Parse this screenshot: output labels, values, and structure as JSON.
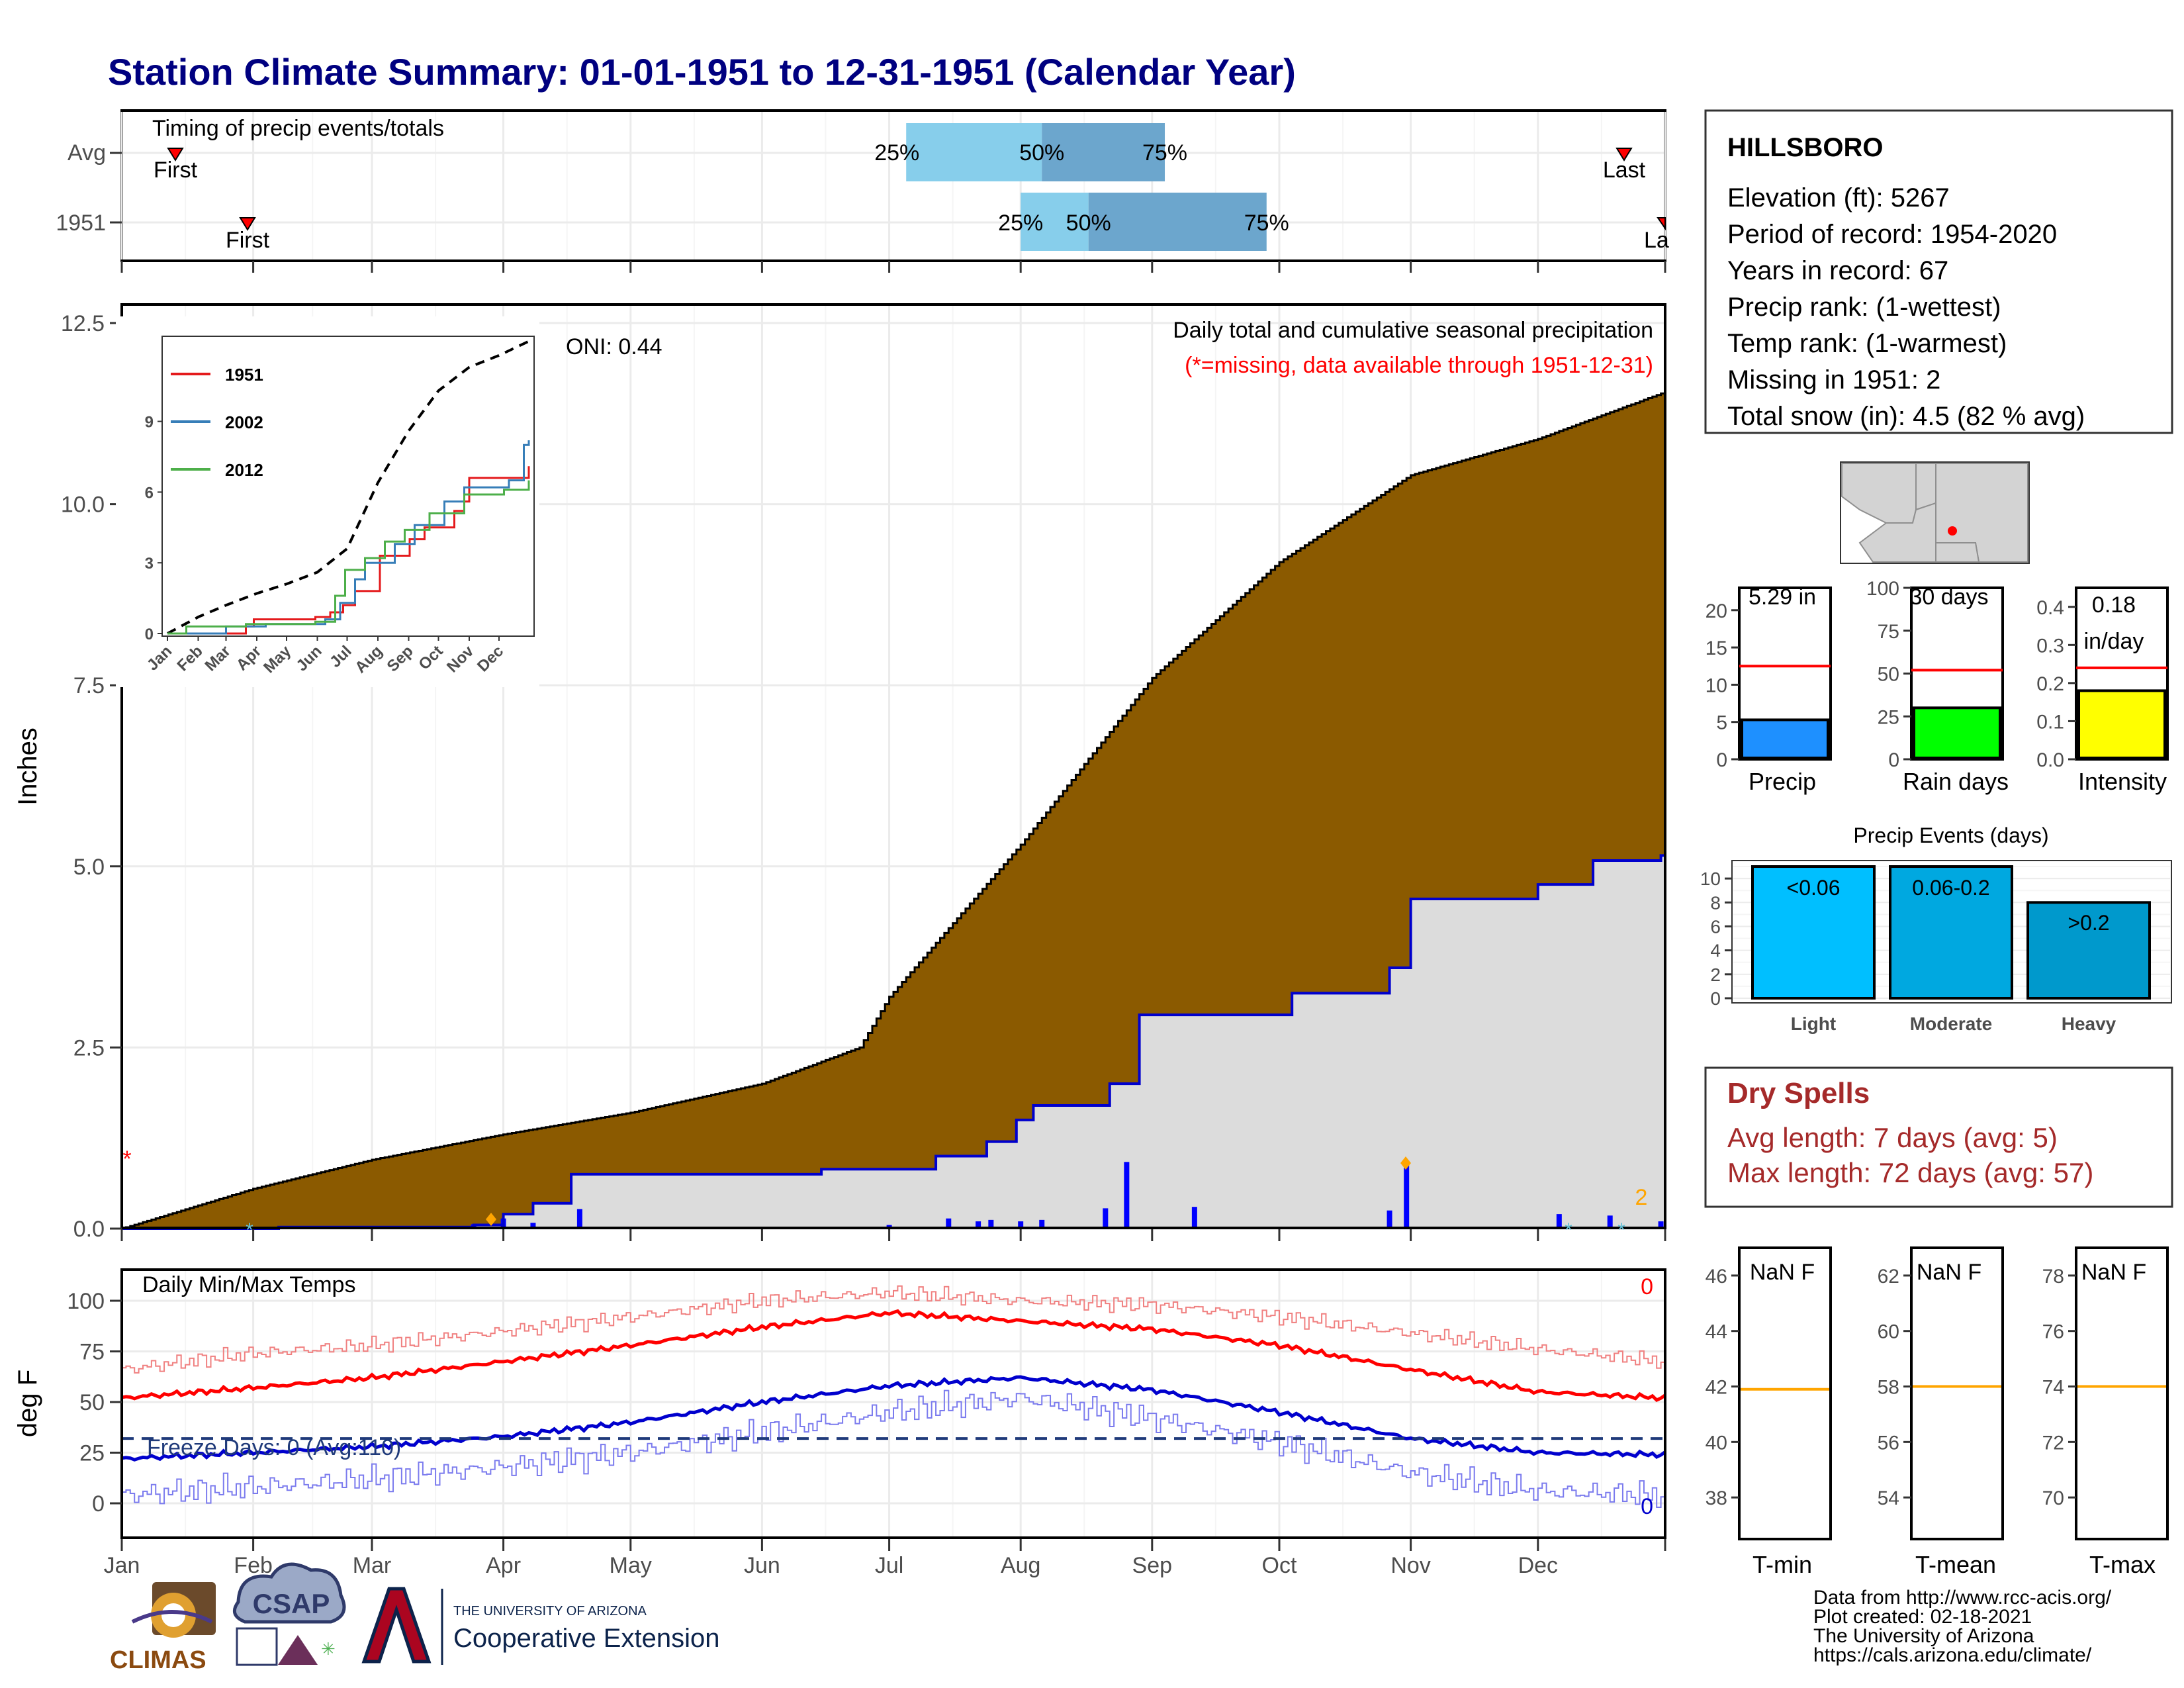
{
  "title": "Station Climate Summary: 01-01-1951 to 12-31-1951 (Calendar Year)",
  "months": [
    "Jan",
    "Feb",
    "Mar",
    "Apr",
    "May",
    "Jun",
    "Jul",
    "Aug",
    "Sep",
    "Oct",
    "Nov",
    "Dec"
  ],
  "timing": {
    "title": "Timing of precip events/totals",
    "rows": [
      "Avg",
      "1951"
    ],
    "first_label": "First",
    "last_label": "Last",
    "last_label_cut": "La",
    "p25": "25%",
    "p50": "50%",
    "p75": "75%"
  },
  "precip_panel": {
    "ylabel": "Inches",
    "oni": "ONI: 0.44",
    "subtitle": "Daily total and cumulative seasonal precipitation",
    "missing_note": "(*=missing, data available through 1951-12-31)",
    "count_label": "2"
  },
  "inset": {
    "legend": [
      "1951",
      "2002",
      "2012"
    ],
    "months": [
      "Jan",
      "Feb",
      "Mar",
      "Apr",
      "May",
      "Jun",
      "Jul",
      "Aug",
      "Sep",
      "Oct",
      "Nov",
      "Dec"
    ]
  },
  "temp_panel": {
    "ylabel": "deg F",
    "title": "Daily Min/Max Temps",
    "freeze": "Freeze Days: 0 (Avg:110)",
    "max_count": "0",
    "min_count": "0"
  },
  "station": {
    "name": "HILLSBORO",
    "lines": [
      "Elevation (ft): 5267",
      "Period of record: 1954-2020",
      "Years in record: 67",
      "Precip rank:  (1-wettest)",
      "Temp rank:  (1-warmest)",
      "Missing in 1951: 2",
      "Total snow (in): 4.5 (82 % avg)"
    ]
  },
  "bars": {
    "precip": {
      "value_label": "5.29 in",
      "label": "Precip"
    },
    "raindays": {
      "value_label": "30 days",
      "label": "Rain days"
    },
    "intensity": {
      "value_label_1": "0.18",
      "value_label_2": "in/day",
      "label": "Intensity"
    }
  },
  "events": {
    "title": "Precip Events (days)",
    "cats": [
      "Light",
      "Moderate",
      "Heavy"
    ],
    "bar_labels": [
      "<0.06",
      "0.06-0.2",
      ">0.2"
    ]
  },
  "dry": {
    "title": "Dry Spells",
    "avg": "Avg length: 7 days (avg: 5)",
    "max": "Max length: 72 days (avg: 57)"
  },
  "temp_boxes": [
    {
      "value_label": "NaN F",
      "label": "T-min"
    },
    {
      "value_label": "NaN F",
      "label": "T-mean"
    },
    {
      "value_label": "NaN F",
      "label": "T-max"
    }
  ],
  "footer": {
    "lines": [
      "Data from http://www.rcc-acis.org/",
      "Plot created: 02-18-2021",
      "The University of Arizona",
      "https://cals.arizona.edu/climate/"
    ],
    "logo_climas": "CLIMAS",
    "logo_csap": "CSAP",
    "logo_ua_small": "THE UNIVERSITY OF ARIZONA",
    "logo_ua_big": "Cooperative Extension"
  },
  "colors": {
    "title": "#000080",
    "cum_avg": "#8B5A00",
    "cum_obs": "#0000CD",
    "obs_fill": "#DCDCDC",
    "p25": "#87CEEB",
    "p50": "#6CA6CD",
    "red": "#FF0000",
    "dry_text": "#A52A2A",
    "precip_bar": "#1E90FF",
    "rain_bar": "#00FF00",
    "int_bar": "#FFFF00",
    "ev_light": "#00BFFF",
    "ev_mod": "#00A8E0",
    "ev_heavy": "#0099CC",
    "freeze_line": "#1F3A7A",
    "orange": "#FFA500"
  },
  "chart_data": [
    {
      "type": "area",
      "title": "Daily total and cumulative seasonal precipitation",
      "ylabel": "Inches",
      "ylim": [
        0,
        12.5
      ],
      "yticks": [
        0.0,
        2.5,
        5.0,
        7.5,
        10.0,
        12.5
      ],
      "x_unit": "day of year",
      "series": [
        {
          "name": "average cumulative",
          "x": [
            1,
            32,
            60,
            91,
            121,
            152,
            175,
            182,
            213,
            244,
            274,
            305,
            335,
            365
          ],
          "values": [
            0.0,
            0.55,
            0.95,
            1.3,
            1.6,
            2.0,
            2.5,
            3.2,
            5.3,
            7.6,
            9.2,
            10.4,
            10.9,
            11.55
          ]
        },
        {
          "name": "1951 cumulative",
          "x": [
            1,
            38,
            84,
            91,
            98,
            107,
            166,
            193,
            205,
            212,
            216,
            234,
            241,
            277,
            300,
            305,
            335,
            348,
            364,
            365
          ],
          "values": [
            0.0,
            0.02,
            0.05,
            0.2,
            0.35,
            0.75,
            0.82,
            1.0,
            1.2,
            1.5,
            1.7,
            2.0,
            2.95,
            3.25,
            3.6,
            4.55,
            4.75,
            5.08,
            5.15,
            5.29
          ]
        }
      ],
      "daily_precip": {
        "x": [
          84,
          91,
          98,
          109,
          182,
          196,
          203,
          206,
          213,
          218,
          233,
          238,
          254,
          300,
          304,
          340,
          352,
          364
        ],
        "values": [
          0.06,
          0.14,
          0.08,
          0.27,
          0.05,
          0.14,
          0.1,
          0.12,
          0.1,
          0.12,
          0.28,
          0.92,
          0.3,
          0.25,
          0.94,
          0.2,
          0.18,
          0.1
        ]
      }
    },
    {
      "type": "line",
      "title": "",
      "ylim": [
        0,
        12
      ],
      "yticks": [
        0,
        3,
        6,
        9
      ],
      "x_unit": "day of year",
      "series": [
        {
          "name": "average",
          "x": [
            1,
            32,
            60,
            91,
            121,
            152,
            182,
            213,
            244,
            274,
            305,
            335,
            365
          ],
          "values": [
            0.0,
            0.7,
            1.2,
            1.7,
            2.1,
            2.6,
            3.6,
            6.4,
            8.6,
            10.3,
            11.3,
            11.8,
            12.4
          ]
        },
        {
          "name": "1951",
          "x": [
            1,
            80,
            88,
            150,
            165,
            178,
            190,
            215,
            245,
            260,
            290,
            300,
            305,
            365
          ],
          "values": [
            0.0,
            0.3,
            0.6,
            0.7,
            0.9,
            1.2,
            1.8,
            3.3,
            4.0,
            4.5,
            5.2,
            5.6,
            6.6,
            7.1
          ]
        },
        {
          "name": "2002",
          "x": [
            1,
            60,
            100,
            160,
            175,
            190,
            200,
            230,
            250,
            280,
            300,
            345,
            360,
            365
          ],
          "values": [
            0.0,
            0.3,
            0.4,
            0.6,
            1.3,
            2.3,
            3.0,
            3.8,
            4.6,
            5.6,
            6.2,
            6.5,
            8.0,
            8.2
          ]
        },
        {
          "name": "2012",
          "x": [
            1,
            20,
            80,
            150,
            170,
            180,
            200,
            220,
            240,
            265,
            300,
            340,
            365
          ],
          "values": [
            0.0,
            0.3,
            0.4,
            0.5,
            1.6,
            2.7,
            3.2,
            3.9,
            4.4,
            5.1,
            5.9,
            6.1,
            6.5
          ]
        }
      ]
    },
    {
      "type": "line",
      "title": "Daily Min/Max Temps",
      "ylabel": "deg F",
      "ylim": [
        -15,
        110
      ],
      "yticks": [
        0,
        25,
        50,
        75,
        100
      ],
      "x_unit": "day of year",
      "freeze_threshold": 32,
      "series": [
        {
          "name": "avg max",
          "x": [
            1,
            32,
            60,
            91,
            121,
            152,
            182,
            213,
            244,
            274,
            305,
            335,
            365
          ],
          "values": [
            52,
            57,
            62,
            70,
            78,
            87,
            94,
            90,
            86,
            78,
            66,
            55,
            52
          ]
        },
        {
          "name": "avg min",
          "x": [
            1,
            32,
            60,
            91,
            121,
            152,
            182,
            213,
            244,
            274,
            305,
            335,
            365
          ],
          "values": [
            22,
            25,
            28,
            33,
            40,
            50,
            58,
            62,
            56,
            45,
            32,
            25,
            24
          ]
        },
        {
          "name": "record high",
          "x": [
            1,
            32,
            60,
            91,
            121,
            152,
            182,
            213,
            244,
            274,
            305,
            335,
            365
          ],
          "values": [
            66,
            74,
            78,
            85,
            92,
            100,
            104,
            100,
            98,
            92,
            84,
            76,
            70
          ]
        },
        {
          "name": "record low",
          "x": [
            1,
            32,
            60,
            91,
            121,
            152,
            182,
            213,
            244,
            274,
            305,
            335,
            365
          ],
          "values": [
            4,
            8,
            12,
            18,
            25,
            35,
            45,
            52,
            42,
            30,
            15,
            6,
            4
          ]
        }
      ]
    },
    {
      "type": "bar",
      "categories": [
        "Precip",
        "Rain days",
        "Intensity"
      ],
      "values": [
        5.29,
        30,
        0.18
      ],
      "averages": [
        12.5,
        52,
        0.24
      ],
      "ylims": [
        [
          0,
          23
        ],
        [
          0,
          100
        ],
        [
          0,
          0.45
        ]
      ]
    },
    {
      "type": "bar",
      "title": "Precip Events (days)",
      "categories": [
        "Light",
        "Moderate",
        "Heavy"
      ],
      "values": [
        11,
        11,
        8
      ],
      "ylim": [
        0,
        11.5
      ],
      "yticks": [
        0,
        2,
        4,
        6,
        8,
        10
      ]
    },
    {
      "type": "bar",
      "categories": [
        "T-min",
        "T-mean",
        "T-max"
      ],
      "averages": [
        41.9,
        58,
        74
      ],
      "ylims": [
        [
          36.5,
          47
        ],
        [
          52.5,
          63
        ],
        [
          68.5,
          79
        ]
      ]
    }
  ]
}
